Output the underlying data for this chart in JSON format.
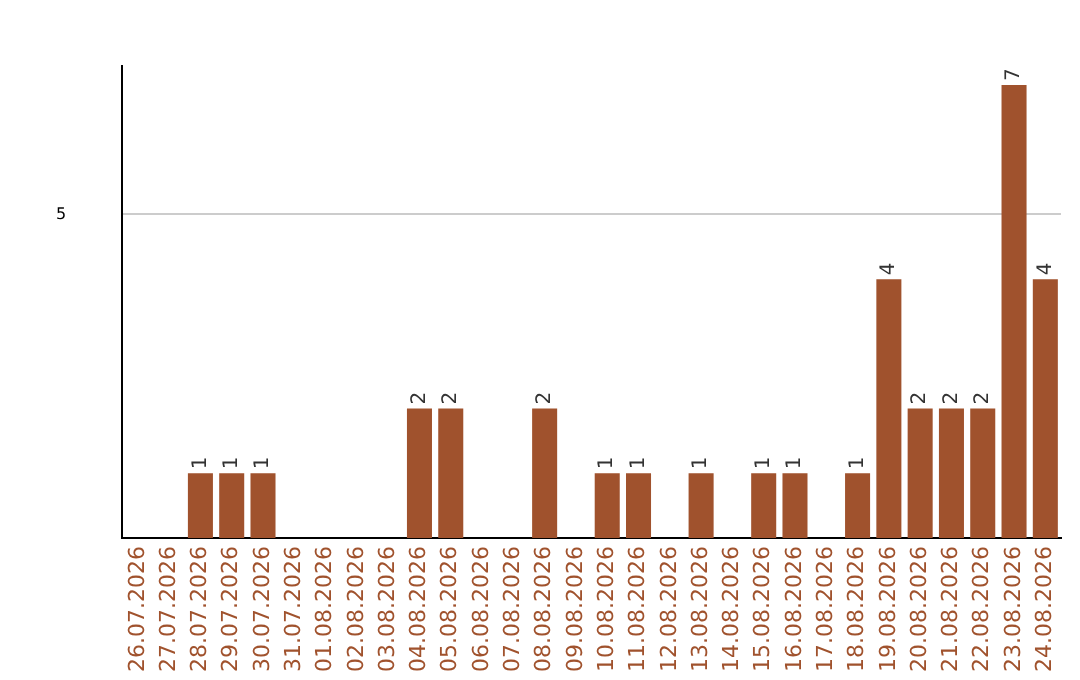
{
  "chart_data": {
    "type": "bar",
    "categories": [
      "26.07.2026",
      "27.07.2026",
      "28.07.2026",
      "29.07.2026",
      "30.07.2026",
      "31.07.2026",
      "01.08.2026",
      "02.08.2026",
      "03.08.2026",
      "04.08.2026",
      "05.08.2026",
      "06.08.2026",
      "07.08.2026",
      "08.08.2026",
      "09.08.2026",
      "10.08.2026",
      "11.08.2026",
      "12.08.2026",
      "13.08.2026",
      "14.08.2026",
      "15.08.2026",
      "16.08.2026",
      "17.08.2026",
      "18.08.2026",
      "19.08.2026",
      "20.08.2026",
      "21.08.2026",
      "22.08.2026",
      "23.08.2026",
      "24.08.2026"
    ],
    "values": [
      0,
      0,
      1,
      1,
      1,
      0,
      0,
      0,
      0,
      2,
      2,
      0,
      0,
      2,
      0,
      1,
      1,
      0,
      1,
      0,
      1,
      1,
      0,
      1,
      4,
      2,
      2,
      2,
      7,
      4
    ],
    "value_labels": [
      null,
      null,
      "1",
      "1",
      "1",
      null,
      null,
      null,
      null,
      "2",
      "2",
      null,
      null,
      "2",
      null,
      "1",
      "1",
      null,
      "1",
      null,
      "1",
      "1",
      null,
      "1",
      "4",
      "2",
      "2",
      "2",
      "7",
      "4"
    ],
    "color": "#a0522d",
    "ylim": [
      0,
      7.3
    ],
    "yticks": [
      5
    ],
    "grid": "y",
    "legend": false
  }
}
